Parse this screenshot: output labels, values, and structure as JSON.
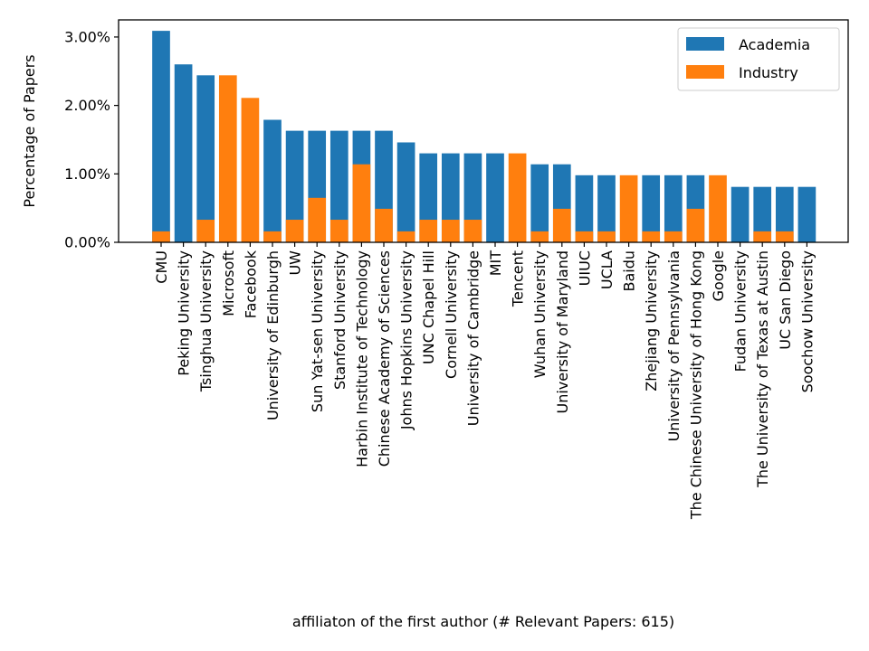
{
  "chart_data": {
    "type": "bar",
    "stacked": false,
    "overlaid": true,
    "xlabel": "affiliaton of the first author (# Relevant Papers: 615)",
    "ylabel": "Percentage of Papers",
    "ylim": [
      0,
      3.25
    ],
    "yticks": [
      0,
      1,
      2,
      3
    ],
    "ytick_labels": [
      "0.00%",
      "1.00%",
      "2.00%",
      "3.00%"
    ],
    "grid": false,
    "legend_position": "top-right",
    "categories": [
      "CMU",
      "Peking University",
      "Tsinghua University",
      "Microsoft",
      "Facebook",
      "University of Edinburgh",
      "UW",
      "Sun Yat-sen University",
      "Stanford University",
      "Harbin Institute of Technology",
      "Chinese Academy of Sciences",
      "Johns Hopkins University",
      "UNC Chapel Hill",
      "Cornell University",
      "University of Cambridge",
      "MIT",
      "Tencent",
      "Wuhan University",
      "University of Maryland",
      "UIUC",
      "UCLA",
      "Baidu",
      "Zhejiang University",
      "University of Pennsylvania",
      "The Chinese University of Hong Kong",
      "Google",
      "Fudan University",
      "The University of Texas at Austin",
      "UC San Diego",
      "Soochow University"
    ],
    "series": [
      {
        "name": "Academia",
        "color": "#1f77b4",
        "values": [
          3.09,
          2.6,
          2.44,
          0,
          0,
          1.79,
          1.63,
          1.63,
          1.63,
          1.63,
          1.63,
          1.46,
          1.3,
          1.3,
          1.3,
          1.3,
          0,
          1.14,
          1.14,
          0.98,
          0.98,
          0,
          0.98,
          0.98,
          0.98,
          0,
          0.81,
          0.81,
          0.81,
          0.81
        ]
      },
      {
        "name": "Industry",
        "color": "#ff7f0e",
        "values": [
          0.16,
          0,
          0.33,
          2.44,
          2.11,
          0.16,
          0.33,
          0.65,
          0.33,
          1.14,
          0.49,
          0.16,
          0.33,
          0.33,
          0.33,
          0,
          1.3,
          0.16,
          0.49,
          0.16,
          0.16,
          0.98,
          0.16,
          0.16,
          0.49,
          0.98,
          0,
          0.16,
          0.16,
          0
        ]
      }
    ]
  }
}
